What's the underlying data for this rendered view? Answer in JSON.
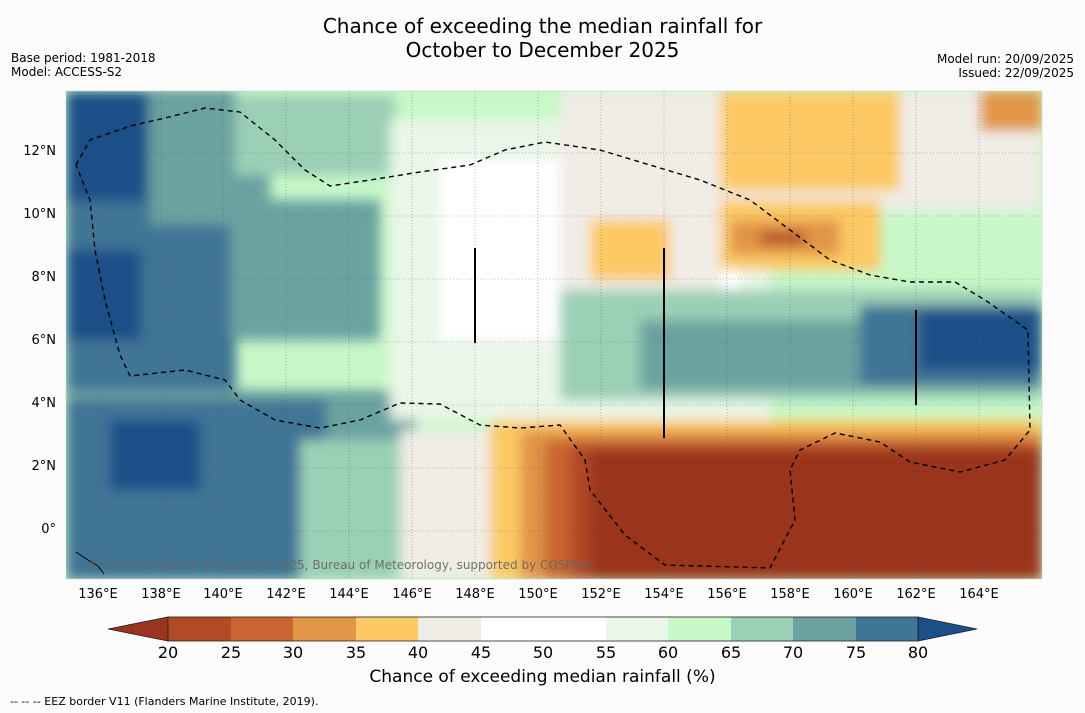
{
  "header": {
    "title_line1": "Chance of exceeding the median rainfall for",
    "title_line2": "October to December 2025",
    "base_period": "Base period: 1981-2018",
    "model": "Model: ACCESS-S2",
    "model_run": "Model run: 20/09/2025",
    "issued": "Issued: 22/09/2025"
  },
  "map": {
    "watermark": "© Commonwealth of Australia 2025, Bureau of Meteorology, supported by COSPPac",
    "x_ticks": [
      "136°E",
      "138°E",
      "140°E",
      "142°E",
      "144°E",
      "146°E",
      "148°E",
      "150°E",
      "152°E",
      "154°E",
      "156°E",
      "158°E",
      "160°E",
      "162°E",
      "164°E"
    ],
    "y_ticks": [
      "12°N",
      "10°N",
      "8°N",
      "6°N",
      "4°N",
      "2°N",
      "0°"
    ],
    "lon_range": [
      135,
      166
    ],
    "lat_range": [
      -1.5,
      13.9
    ]
  },
  "colorbar": {
    "labels": [
      "20",
      "25",
      "30",
      "35",
      "40",
      "45",
      "50",
      "55",
      "60",
      "65",
      "70",
      "75",
      "80"
    ],
    "colors": [
      "#9a341f",
      "#b14a27",
      "#c96533",
      "#e19546",
      "#fdc965",
      "#f0ece6",
      "#ffffff",
      "#ffffff",
      "#e9f6e8",
      "#c8f8c8",
      "#9bcfb6",
      "#6ba2a0",
      "#3f7596",
      "#1b4f88"
    ],
    "title": "Chance of exceeding median rainfall (%)"
  },
  "footnote": "--  --  -- EEZ border V11 (Flanders Marine Institute, 2019)."
}
